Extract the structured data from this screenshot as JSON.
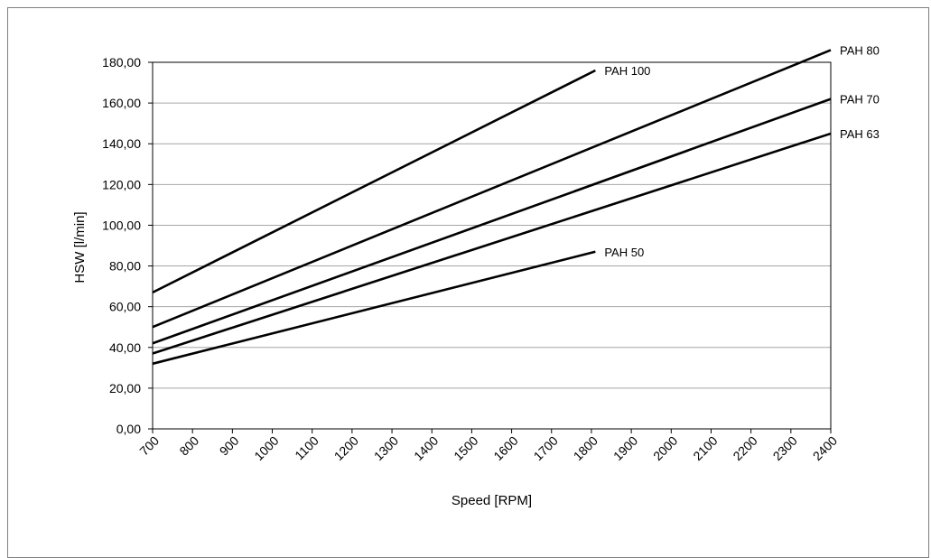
{
  "chart_data": {
    "type": "line",
    "title": "",
    "xlabel": "Speed [RPM]",
    "ylabel": "HSW [l/min]",
    "xlim": [
      700,
      2400
    ],
    "ylim": [
      0,
      180
    ],
    "x_ticks": [
      700,
      800,
      900,
      1000,
      1100,
      1200,
      1300,
      1400,
      1500,
      1600,
      1700,
      1800,
      1900,
      2000,
      2100,
      2200,
      2300,
      2400
    ],
    "y_ticks": [
      "0,00",
      "20,00",
      "40,00",
      "60,00",
      "80,00",
      "100,00",
      "120,00",
      "140,00",
      "160,00",
      "180,00"
    ],
    "y_tick_values": [
      0,
      20,
      40,
      60,
      80,
      100,
      120,
      140,
      160,
      180
    ],
    "grid": "horizontal",
    "line_color": "#000000",
    "series": [
      {
        "name": "PAH 100",
        "x": [
          700,
          1810
        ],
        "y": [
          67,
          176
        ]
      },
      {
        "name": "PAH 80",
        "x": [
          700,
          2400
        ],
        "y": [
          50,
          186
        ]
      },
      {
        "name": "PAH 70",
        "x": [
          700,
          2400
        ],
        "y": [
          42,
          162
        ]
      },
      {
        "name": "PAH 63",
        "x": [
          700,
          2400
        ],
        "y": [
          37,
          145
        ]
      },
      {
        "name": "PAH 50",
        "x": [
          700,
          1810
        ],
        "y": [
          32,
          87
        ]
      }
    ]
  }
}
